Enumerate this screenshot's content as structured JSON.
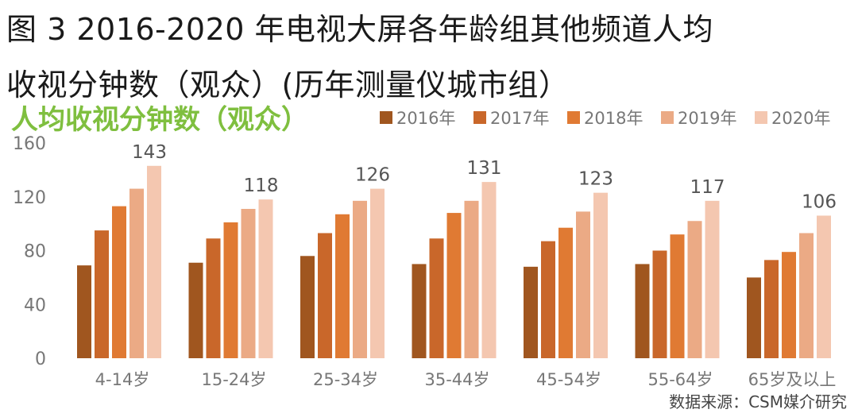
{
  "figure": {
    "title_line1": "图 3 2016-2020 年电视大屏各年龄组其他频道人均",
    "title_line2": "收视分钟数（观众）(历年测量仪城市组）",
    "source": "数据来源：CSM媒介研究"
  },
  "colors": {
    "2016年": "#a0561f",
    "2017年": "#c9672a",
    "2018年": "#e07a33",
    "2019年": "#ebaa85",
    "2020年": "#f4c7b0",
    "subtitle": "#7fbf3f",
    "axis_text": "#777777",
    "label_text": "#555555"
  },
  "chart_data": {
    "type": "bar",
    "title": "人均收视分钟数（观众）",
    "categories": [
      "4-14岁",
      "15-24岁",
      "25-34岁",
      "35-44岁",
      "45-54岁",
      "55-64岁",
      "65岁及以上"
    ],
    "series": [
      {
        "name": "2016年",
        "values": [
          69,
          71,
          76,
          70,
          68,
          70,
          60
        ]
      },
      {
        "name": "2017年",
        "values": [
          95,
          89,
          93,
          89,
          87,
          80,
          73
        ]
      },
      {
        "name": "2018年",
        "values": [
          113,
          101,
          107,
          108,
          97,
          92,
          79
        ]
      },
      {
        "name": "2019年",
        "values": [
          126,
          111,
          117,
          117,
          109,
          102,
          93
        ]
      },
      {
        "name": "2020年",
        "values": [
          143,
          118,
          126,
          131,
          123,
          117,
          106
        ]
      }
    ],
    "data_labels_series": "2020年",
    "yticks": [
      0,
      40,
      80,
      120,
      160
    ],
    "ylim": [
      0,
      160
    ],
    "legend_position": "top-right",
    "grid": false
  }
}
